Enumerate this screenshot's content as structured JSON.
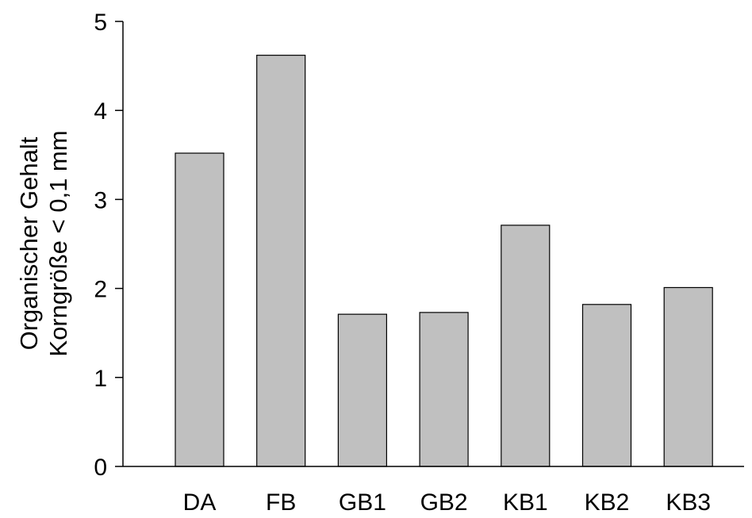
{
  "chart_data": {
    "type": "bar",
    "title": "",
    "xlabel": "",
    "ylabel_lines": [
      "Organischer Gehalt",
      "Korngröße < 0,1 mm"
    ],
    "categories": [
      "DA",
      "FB",
      "GB1",
      "GB2",
      "KB1",
      "KB2",
      "KB3"
    ],
    "values": [
      3.52,
      4.62,
      1.71,
      1.73,
      2.71,
      1.82,
      2.01
    ],
    "ylim": [
      0,
      5
    ],
    "yticks": [
      "0",
      "1",
      "2",
      "3",
      "4",
      "5"
    ],
    "grid": false,
    "legend": "none",
    "colors": {
      "bar_fill": "#c0c0c0",
      "bar_stroke": "#000000",
      "axis": "#000000"
    }
  }
}
